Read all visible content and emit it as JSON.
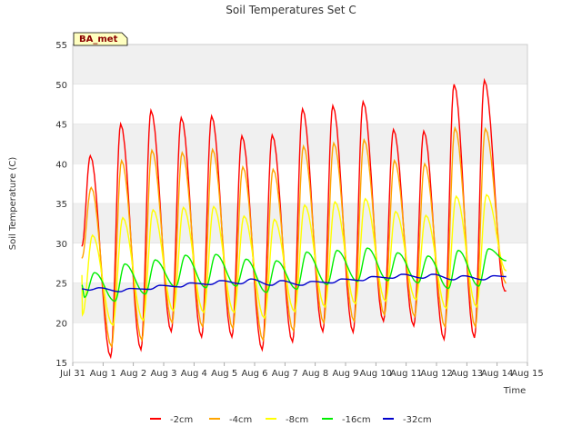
{
  "chart_data": {
    "type": "line",
    "title": "Soil Temperatures Set C",
    "xlabel": "Time",
    "ylabel": "Soil Temperature (C)",
    "station_label": "BA_met",
    "ylim": [
      15,
      55
    ],
    "xlim": [
      0,
      15
    ],
    "yticks": [
      15,
      20,
      25,
      30,
      35,
      40,
      45,
      50,
      55
    ],
    "xtick_positions": [
      0,
      1,
      2,
      3,
      4,
      5,
      6,
      7,
      8,
      9,
      10,
      11,
      12,
      13,
      14,
      15
    ],
    "xtick_labels": [
      "Jul 31",
      "Aug 1",
      "Aug 2",
      "Aug 3",
      "Aug 4",
      "Aug 5",
      "Aug 6",
      "Aug 7",
      "Aug 8",
      "Aug 9",
      "Aug 10",
      "Aug 11",
      "Aug 12",
      "Aug 13",
      "Aug 14",
      "Aug 15"
    ],
    "grid": true,
    "legend_position": "bottom",
    "series": [
      {
        "name": "-2cm",
        "color": "#ff0000",
        "daily_min": [
          18.2,
          15.7,
          16.6,
          18.9,
          18.2,
          18.2,
          16.6,
          17.6,
          18.9,
          18.8,
          20.2,
          19.6,
          17.9,
          18.1,
          24.0
        ],
        "daily_max": [
          41.0,
          45.0,
          46.7,
          45.8,
          46.0,
          43.5,
          43.6,
          46.9,
          47.3,
          47.8,
          44.3,
          44.1,
          50.0,
          50.5
        ]
      },
      {
        "name": "-4cm",
        "color": "#ffa500",
        "daily_min": [
          19.2,
          17.0,
          17.8,
          20.0,
          19.5,
          19.3,
          17.8,
          19.0,
          20.0,
          20.2,
          21.0,
          20.8,
          19.5,
          19.5,
          25.0
        ],
        "daily_max": [
          37.0,
          40.4,
          41.7,
          41.4,
          41.8,
          39.6,
          39.3,
          42.2,
          42.6,
          43.0,
          40.4,
          40.0,
          44.5,
          44.4
        ]
      },
      {
        "name": "-8cm",
        "color": "#ffff00",
        "daily_min": [
          21.0,
          19.7,
          20.3,
          21.5,
          21.3,
          21.3,
          20.6,
          21.4,
          22.0,
          22.4,
          22.7,
          22.9,
          21.8,
          22.0,
          26.5
        ],
        "daily_max": [
          31.0,
          33.2,
          34.2,
          34.5,
          34.6,
          33.4,
          33.0,
          34.8,
          35.2,
          35.6,
          34.0,
          33.5,
          35.9,
          36.1
        ]
      },
      {
        "name": "-16cm",
        "color": "#00ee00",
        "daily_min": [
          23.2,
          22.7,
          23.6,
          24.5,
          24.4,
          24.6,
          23.8,
          24.2,
          24.8,
          25.2,
          25.3,
          25.0,
          24.3,
          24.6,
          27.8
        ],
        "daily_max": [
          26.3,
          27.4,
          27.9,
          28.5,
          28.6,
          28.0,
          27.8,
          28.9,
          29.1,
          29.4,
          28.8,
          28.4,
          29.1,
          29.3
        ]
      },
      {
        "name": "-32cm",
        "color": "#0000cc",
        "daily_min": [
          24.1,
          23.9,
          24.2,
          24.5,
          24.8,
          24.9,
          24.7,
          24.7,
          25.0,
          25.3,
          25.6,
          25.6,
          25.4,
          25.4,
          25.8
        ],
        "daily_max": [
          24.4,
          24.3,
          24.7,
          25.0,
          25.3,
          25.5,
          25.3,
          25.2,
          25.5,
          25.8,
          26.1,
          26.1,
          25.9,
          25.9,
          26.0
        ]
      }
    ]
  }
}
